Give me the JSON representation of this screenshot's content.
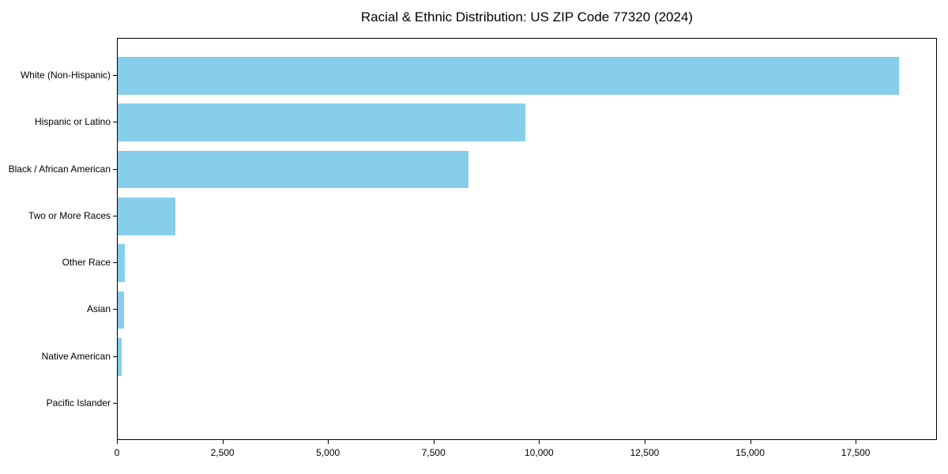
{
  "chart_data": {
    "type": "bar",
    "orientation": "horizontal",
    "title": "Racial & Ethnic Distribution: US ZIP Code 77320 (2024)",
    "categories": [
      "White (Non-Hispanic)",
      "Hispanic or Latino",
      "Black / African American",
      "Two or More Races",
      "Other Race",
      "Asian",
      "Native American",
      "Pacific Islander"
    ],
    "values": [
      18500,
      9660,
      8300,
      1370,
      165,
      150,
      95,
      0
    ],
    "bar_color": "#87CEEB",
    "xlabel": "",
    "ylabel": "",
    "xlim": [
      0,
      19425
    ],
    "x_ticks": [
      0,
      2500,
      5000,
      7500,
      10000,
      12500,
      15000,
      17500
    ],
    "x_tick_labels": [
      "0",
      "2,500",
      "5,000",
      "7,500",
      "10,000",
      "12,500",
      "15,000",
      "17,500"
    ],
    "grid": false,
    "legend": "none"
  }
}
